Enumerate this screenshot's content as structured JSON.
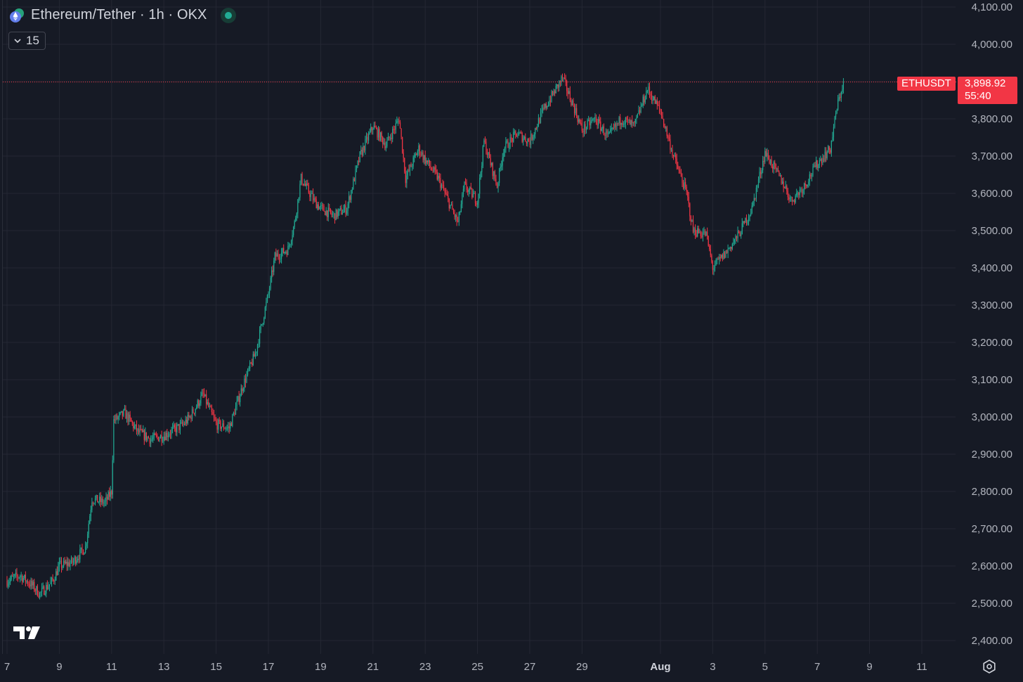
{
  "header": {
    "title": "Ethereum/Tether · 1h · OKX",
    "indicator_count": "15"
  },
  "price_line": {
    "symbol": "ETHUSDT",
    "price": "3,898.92",
    "countdown": "55:40",
    "value": 3898.92
  },
  "colors": {
    "background": "#161a25",
    "up": "#22ab94",
    "down": "#f23645",
    "grid": "#242733",
    "text": "#b2b5be"
  },
  "chart_data": {
    "type": "candlestick",
    "symbol": "ETHUSDT",
    "interval": "1h",
    "exchange": "OKX",
    "y_ticks": [
      2400,
      2500,
      2600,
      2700,
      2800,
      2900,
      3000,
      3100,
      3200,
      3300,
      3400,
      3500,
      3600,
      3700,
      3800,
      3900,
      4000,
      4100
    ],
    "y_tick_labels": [
      "2,400.00",
      "2,500.00",
      "2,600.00",
      "2,700.00",
      "2,800.00",
      "2,900.00",
      "3,000.00",
      "3,100.00",
      "3,200.00",
      "3,300.00",
      "3,400.00",
      "3,500.00",
      "3,600.00",
      "3,700.00",
      "3,800.00",
      "3,900.00",
      "4,000.00",
      "4,100.00"
    ],
    "ylim": [
      2380,
      4120
    ],
    "x_ticks": [
      {
        "label": "7",
        "date": "2025-07-07"
      },
      {
        "label": "9",
        "date": "2025-07-09"
      },
      {
        "label": "11",
        "date": "2025-07-11"
      },
      {
        "label": "13",
        "date": "2025-07-13"
      },
      {
        "label": "15",
        "date": "2025-07-15"
      },
      {
        "label": "17",
        "date": "2025-07-17"
      },
      {
        "label": "19",
        "date": "2025-07-19"
      },
      {
        "label": "21",
        "date": "2025-07-21"
      },
      {
        "label": "23",
        "date": "2025-07-23"
      },
      {
        "label": "25",
        "date": "2025-07-25"
      },
      {
        "label": "27",
        "date": "2025-07-27"
      },
      {
        "label": "29",
        "date": "2025-07-29"
      },
      {
        "label": "Aug",
        "date": "2025-08-01",
        "bold": true
      },
      {
        "label": "3",
        "date": "2025-08-03"
      },
      {
        "label": "5",
        "date": "2025-08-05"
      },
      {
        "label": "7",
        "date": "2025-08-07"
      },
      {
        "label": "9",
        "date": "2025-08-09"
      },
      {
        "label": "11",
        "date": "2025-08-11"
      }
    ],
    "close_path": [
      [
        "2025-07-07",
        2560
      ],
      [
        "2025-07-07 12:00",
        2575
      ],
      [
        "2025-07-08",
        2545
      ],
      [
        "2025-07-08 06:00",
        2525
      ],
      [
        "2025-07-08 18:00",
        2560
      ],
      [
        "2025-07-09",
        2600
      ],
      [
        "2025-07-09 12:00",
        2610
      ],
      [
        "2025-07-10",
        2650
      ],
      [
        "2025-07-10 06:00",
        2780
      ],
      [
        "2025-07-10 18:00",
        2770
      ],
      [
        "2025-07-11",
        2800
      ],
      [
        "2025-07-11 02:00",
        2990
      ],
      [
        "2025-07-11 12:00",
        3010
      ],
      [
        "2025-07-12",
        2960
      ],
      [
        "2025-07-12 12:00",
        2940
      ],
      [
        "2025-07-13",
        2950
      ],
      [
        "2025-07-13 18:00",
        2980
      ],
      [
        "2025-07-14",
        3000
      ],
      [
        "2025-07-14 12:00",
        3060
      ],
      [
        "2025-07-15",
        2980
      ],
      [
        "2025-07-15 12:00",
        2970
      ],
      [
        "2025-07-16",
        3080
      ],
      [
        "2025-07-16 12:00",
        3170
      ],
      [
        "2025-07-16 18:00",
        3250
      ],
      [
        "2025-07-17",
        3330
      ],
      [
        "2025-07-17 06:00",
        3430
      ],
      [
        "2025-07-17 18:00",
        3450
      ],
      [
        "2025-07-18",
        3520
      ],
      [
        "2025-07-18 06:00",
        3640
      ],
      [
        "2025-07-18 18:00",
        3580
      ],
      [
        "2025-07-19",
        3560
      ],
      [
        "2025-07-19 12:00",
        3540
      ],
      [
        "2025-07-20",
        3560
      ],
      [
        "2025-07-20 12:00",
        3700
      ],
      [
        "2025-07-21",
        3780
      ],
      [
        "2025-07-21 12:00",
        3730
      ],
      [
        "2025-07-22",
        3800
      ],
      [
        "2025-07-22 06:00",
        3640
      ],
      [
        "2025-07-22 18:00",
        3720
      ],
      [
        "2025-07-23",
        3690
      ],
      [
        "2025-07-23 12:00",
        3640
      ],
      [
        "2025-07-24",
        3560
      ],
      [
        "2025-07-24 06:00",
        3520
      ],
      [
        "2025-07-24 12:00",
        3620
      ],
      [
        "2025-07-25",
        3580
      ],
      [
        "2025-07-25 06:00",
        3740
      ],
      [
        "2025-07-25 18:00",
        3620
      ],
      [
        "2025-07-26",
        3720
      ],
      [
        "2025-07-26 12:00",
        3760
      ],
      [
        "2025-07-27",
        3740
      ],
      [
        "2025-07-27 12:00",
        3820
      ],
      [
        "2025-07-28",
        3880
      ],
      [
        "2025-07-28 06:00",
        3910
      ],
      [
        "2025-07-28 18:00",
        3820
      ],
      [
        "2025-07-29",
        3770
      ],
      [
        "2025-07-29 12:00",
        3800
      ],
      [
        "2025-07-30",
        3750
      ],
      [
        "2025-07-30 12:00",
        3800
      ],
      [
        "2025-07-31",
        3780
      ],
      [
        "2025-07-31 12:00",
        3880
      ],
      [
        "2025-08-01",
        3820
      ],
      [
        "2025-08-01 12:00",
        3700
      ],
      [
        "2025-08-02",
        3600
      ],
      [
        "2025-08-02 06:00",
        3500
      ],
      [
        "2025-08-02 18:00",
        3490
      ],
      [
        "2025-08-03",
        3400
      ],
      [
        "2025-08-03 12:00",
        3440
      ],
      [
        "2025-08-04",
        3490
      ],
      [
        "2025-08-04 12:00",
        3560
      ],
      [
        "2025-08-05",
        3710
      ],
      [
        "2025-08-05 06:00",
        3680
      ],
      [
        "2025-08-05 18:00",
        3620
      ],
      [
        "2025-08-06",
        3580
      ],
      [
        "2025-08-06 12:00",
        3620
      ],
      [
        "2025-08-07",
        3680
      ],
      [
        "2025-08-07 12:00",
        3720
      ],
      [
        "2025-08-07 18:00",
        3830
      ],
      [
        "2025-08-08",
        3898.92
      ]
    ],
    "extremes": {
      "low": 2510,
      "high": 3940
    }
  }
}
